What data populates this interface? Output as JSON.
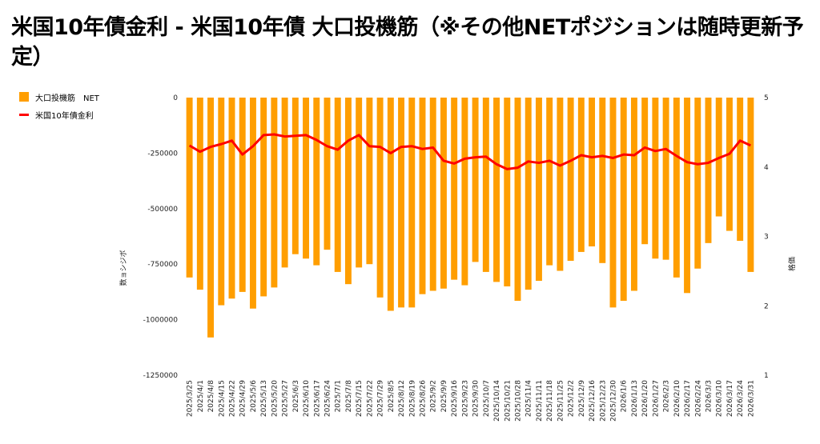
{
  "chart_data": {
    "type": "bar",
    "title": "米国10年債金利 - 米国10年債 大口投機筋（※その他NETポジションは随時更新予定）",
    "ylabel": "数ョシジボ",
    "y2label": "格価",
    "legend_position": "top-left",
    "ylim": [
      -1250000,
      0
    ],
    "y2lim": [
      1,
      5
    ],
    "y_ticks": [
      "0",
      "-250000",
      "-500000",
      "-750000",
      "-1000000",
      "-1250000"
    ],
    "y2_ticks": [
      "5",
      "4",
      "3",
      "2",
      "1"
    ],
    "grid": false,
    "colors": {
      "bar": "#ff9e00",
      "line": "#ff0000"
    },
    "categories": [
      "2025/3/25",
      "2025/4/1",
      "2025/4/8",
      "2025/4/15",
      "2025/4/22",
      "2025/4/29",
      "2025/5/6",
      "2025/5/13",
      "2025/5/20",
      "2025/5/27",
      "2025/6/3",
      "2025/6/10",
      "2025/6/17",
      "2025/6/24",
      "2025/7/1",
      "2025/7/8",
      "2025/7/15",
      "2025/7/22",
      "2025/7/29",
      "2025/8/5",
      "2025/8/12",
      "2025/8/19",
      "2025/8/26",
      "2025/9/2",
      "2025/9/9",
      "2025/9/16",
      "2025/9/23",
      "2025/9/30",
      "2025/10/7",
      "2025/10/14",
      "2025/10/21",
      "2025/10/28",
      "2025/11/4",
      "2025/11/11",
      "2025/11/18",
      "2025/11/25",
      "2025/12/2",
      "2025/12/9",
      "2025/12/16",
      "2025/12/23",
      "2025/12/30",
      "2026/1/6",
      "2026/1/13",
      "2026/1/20",
      "2026/1/27",
      "2026/2/3",
      "2026/2/10",
      "2026/2/17",
      "2026/2/24",
      "2026/3/3",
      "2026/3/10",
      "2026/3/17",
      "2026/3/24",
      "2026/3/31"
    ],
    "series": [
      {
        "name": "大口投機筋　NET",
        "axis": "left",
        "type": "bar",
        "values": [
          -810000,
          -865000,
          -1080000,
          -935000,
          -905000,
          -875000,
          -950000,
          -895000,
          -855000,
          -765000,
          -705000,
          -725000,
          -755000,
          -685000,
          -785000,
          -840000,
          -765000,
          -750000,
          -900000,
          -960000,
          -945000,
          -945000,
          -885000,
          -870000,
          -860000,
          -820000,
          -845000,
          -740000,
          -785000,
          -830000,
          -850000,
          -915000,
          -865000,
          -825000,
          -755000,
          -780000,
          -735000,
          -695000,
          -670000,
          -745000,
          -945000,
          -915000,
          -870000,
          -660000,
          -725000,
          -730000,
          -810000,
          -880000,
          -770000,
          -655000,
          -535000,
          -600000,
          -645000,
          -785000
        ]
      },
      {
        "name": "米国10年債金利",
        "axis": "right",
        "type": "line",
        "values": [
          4.31,
          4.22,
          4.29,
          4.33,
          4.38,
          4.18,
          4.3,
          4.46,
          4.47,
          4.44,
          4.45,
          4.46,
          4.39,
          4.3,
          4.25,
          4.38,
          4.46,
          4.3,
          4.29,
          4.2,
          4.29,
          4.3,
          4.26,
          4.28,
          4.09,
          4.05,
          4.12,
          4.14,
          4.15,
          4.04,
          3.97,
          3.99,
          4.08,
          4.06,
          4.09,
          4.02,
          4.09,
          4.17,
          4.14,
          4.16,
          4.13,
          4.18,
          4.17,
          4.28,
          4.23,
          4.26,
          4.16,
          4.07,
          4.04,
          4.06,
          4.13,
          4.19,
          4.38,
          4.31
        ]
      }
    ]
  }
}
